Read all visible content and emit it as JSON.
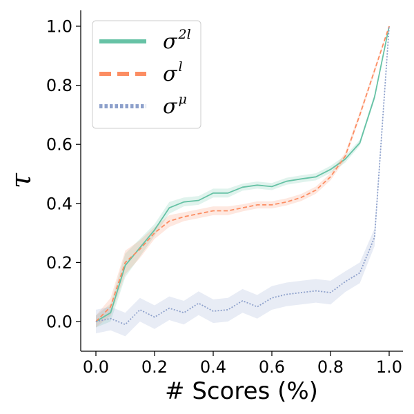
{
  "chart_data": {
    "type": "line",
    "xlabel": "# Scores (%)",
    "ylabel": "τ",
    "xlim": [
      -0.05,
      1.05
    ],
    "ylim": [
      -0.1,
      1.05
    ],
    "x_ticks": [
      "0.0",
      "0.2",
      "0.4",
      "0.6",
      "0.8",
      "1.0"
    ],
    "y_ticks": [
      "0.0",
      "0.2",
      "0.4",
      "0.6",
      "0.8",
      "1.0"
    ],
    "legend_position": "top-left",
    "x": [
      0.0,
      0.05,
      0.1,
      0.15,
      0.2,
      0.25,
      0.3,
      0.35,
      0.4,
      0.45,
      0.5,
      0.55,
      0.6,
      0.65,
      0.7,
      0.75,
      0.8,
      0.85,
      0.9,
      0.95,
      1.0
    ],
    "series": [
      {
        "name": "σ2l",
        "legend_base": "σ",
        "legend_sup": "2l",
        "color": "#66c2a5",
        "style": "solid",
        "values": [
          0.0,
          0.03,
          0.19,
          0.25,
          0.31,
          0.385,
          0.405,
          0.41,
          0.435,
          0.435,
          0.455,
          0.462,
          0.457,
          0.475,
          0.483,
          0.49,
          0.515,
          0.55,
          0.605,
          0.76,
          1.0
        ],
        "band": [
          0.02,
          0.03,
          0.04,
          0.03,
          0.02,
          0.02,
          0.015,
          0.015,
          0.015,
          0.015,
          0.012,
          0.012,
          0.012,
          0.012,
          0.012,
          0.012,
          0.012,
          0.012,
          0.01,
          0.01,
          0.0
        ]
      },
      {
        "name": "σl",
        "legend_base": "σ",
        "legend_sup": "l",
        "color": "#fc8d62",
        "style": "dashed",
        "values": [
          0.0,
          0.05,
          0.2,
          0.245,
          0.3,
          0.34,
          0.355,
          0.365,
          0.375,
          0.375,
          0.385,
          0.395,
          0.395,
          0.405,
          0.42,
          0.445,
          0.49,
          0.56,
          0.7,
          0.85,
          1.0
        ],
        "band": [
          0.02,
          0.03,
          0.04,
          0.03,
          0.02,
          0.02,
          0.015,
          0.015,
          0.015,
          0.015,
          0.012,
          0.012,
          0.012,
          0.012,
          0.012,
          0.012,
          0.012,
          0.012,
          0.01,
          0.01,
          0.0
        ]
      },
      {
        "name": "σμ",
        "legend_base": "σ",
        "legend_sup": "μ",
        "color": "#8da0cb",
        "style": "dotted",
        "values": [
          0.0,
          0.01,
          -0.01,
          0.04,
          0.015,
          0.045,
          0.03,
          0.062,
          0.035,
          0.04,
          0.07,
          0.05,
          0.08,
          0.092,
          0.098,
          0.104,
          0.098,
          0.135,
          0.165,
          0.285,
          1.0
        ],
        "band": [
          0.04,
          0.04,
          0.04,
          0.04,
          0.04,
          0.04,
          0.04,
          0.04,
          0.04,
          0.04,
          0.04,
          0.04,
          0.04,
          0.04,
          0.04,
          0.04,
          0.04,
          0.035,
          0.035,
          0.03,
          0.0
        ]
      }
    ]
  }
}
